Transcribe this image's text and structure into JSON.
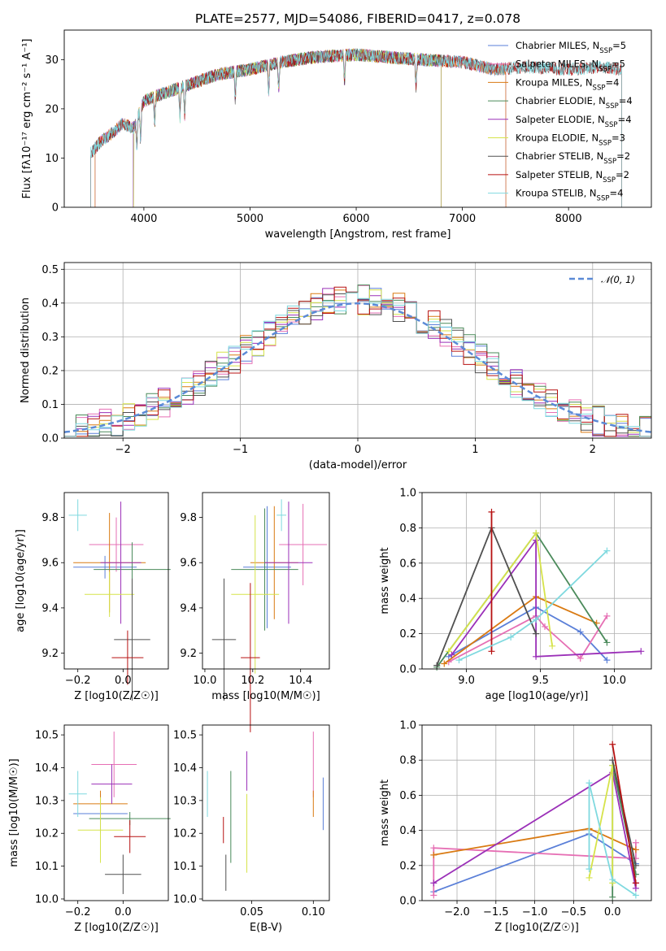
{
  "title": "PLATE=2577, MJD=54086, FIBERID=0417, z=0.078",
  "colors": {
    "chab_miles": "#5a7fd8",
    "salp_miles": "#e66fb4",
    "krou_miles": "#d97a12",
    "chab_elodie": "#4a8a5a",
    "salp_elodie": "#9b30b8",
    "krou_elodie": "#d6e34a",
    "chab_stelib": "#505050",
    "salp_stelib": "#b71212",
    "krou_stelib": "#7fd9df"
  },
  "chart_data": [
    {
      "type": "line",
      "panel": "spectrum",
      "xlabel": "wavelength [Angstrom, rest frame]",
      "ylabel": "Flux [fλ10⁻¹⁷ erg cm⁻² s⁻¹ A⁻¹]",
      "xlim": [
        3250,
        8780
      ],
      "ylim": [
        0,
        36
      ],
      "xticks": [
        4000,
        5000,
        6000,
        7000,
        8000
      ],
      "yticks": [
        0,
        10,
        20,
        30
      ],
      "grid": false,
      "legend_position": "top-right",
      "continuum": {
        "x": [
          3500,
          3600,
          3700,
          3800,
          3900,
          4000,
          4100,
          4300,
          4500,
          4700,
          5000,
          5300,
          5600,
          6000,
          6300,
          6600,
          7000,
          7300,
          7600,
          8000,
          8300,
          8500
        ],
        "y": [
          11,
          13.5,
          15,
          17,
          16,
          21.5,
          22.5,
          24,
          25.5,
          27,
          28,
          29.5,
          30.5,
          31,
          30.5,
          30,
          29.5,
          28,
          28.5,
          28,
          28.5,
          28
        ]
      },
      "series": [
        {
          "name": "Chabrier MILES, N_SSP=5",
          "color_key": "chab_miles",
          "x_range": [
            3540,
            7410
          ]
        },
        {
          "name": "Salpeter MILES, N_SSP=5",
          "color_key": "salp_miles",
          "x_range": [
            3540,
            7410
          ]
        },
        {
          "name": "Kroupa MILES, N_SSP=4",
          "color_key": "krou_miles",
          "x_range": [
            3540,
            7410
          ]
        },
        {
          "name": "Chabrier ELODIE, N_SSP=4",
          "color_key": "chab_elodie",
          "x_range": [
            3900,
            6800
          ]
        },
        {
          "name": "Salpeter ELODIE, N_SSP=4",
          "color_key": "salp_elodie",
          "x_range": [
            3900,
            6800
          ]
        },
        {
          "name": "Kroupa ELODIE, N_SSP=3",
          "color_key": "krou_elodie",
          "x_range": [
            3900,
            6800
          ]
        },
        {
          "name": "Chabrier STELIB, N_SSP=2",
          "color_key": "chab_stelib",
          "x_range": [
            3500,
            8500
          ]
        },
        {
          "name": "Salpeter STELIB, N_SSP=2",
          "color_key": "salp_stelib",
          "x_range": [
            3500,
            8500
          ]
        },
        {
          "name": "Kroupa STELIB, N_SSP=4",
          "color_key": "krou_stelib",
          "x_range": [
            3500,
            8500
          ]
        }
      ]
    },
    {
      "type": "line",
      "panel": "residuals",
      "xlabel": "(data-model)/error",
      "ylabel": "Normed distribution",
      "xlim": [
        -2.5,
        2.5
      ],
      "ylim": [
        0,
        0.52
      ],
      "xticks": [
        -2,
        -1,
        0,
        1,
        2
      ],
      "yticks": [
        0.0,
        0.1,
        0.2,
        0.3,
        0.4,
        0.5
      ],
      "grid": true,
      "legend": "𝒩(0, 1)",
      "legend_position": "top-right",
      "gaussian": {
        "mean": 0,
        "sigma": 1
      },
      "histogram_bin_width": 0.1
    },
    {
      "type": "scatter",
      "panel": "Z_vs_age",
      "xlabel": "Z [log10(Z/Z☉)]",
      "ylabel": "age  [log10(age/yr)]",
      "xlim": [
        -0.26,
        0.2
      ],
      "ylim": [
        9.13,
        9.91
      ],
      "xticks": [
        -0.2,
        0.0
      ],
      "yticks": [
        9.2,
        9.4,
        9.6,
        9.8
      ],
      "points": [
        {
          "color_key": "chab_miles",
          "x": -0.08,
          "xerr": 0.14,
          "y": 9.58,
          "yerr": 0.05
        },
        {
          "color_key": "salp_miles",
          "x": -0.03,
          "xerr": 0.12,
          "y": 9.68,
          "yerr": 0.12
        },
        {
          "color_key": "krou_miles",
          "x": -0.06,
          "xerr": 0.16,
          "y": 9.6,
          "yerr": 0.22
        },
        {
          "color_key": "chab_elodie",
          "x": 0.04,
          "xerr": 0.17,
          "y": 9.57,
          "yerr": 0.12
        },
        {
          "color_key": "salp_elodie",
          "x": -0.01,
          "xerr": 0.09,
          "y": 9.6,
          "yerr": 0.27
        },
        {
          "color_key": "krou_elodie",
          "x": -0.06,
          "xerr": 0.11,
          "y": 9.46,
          "yerr": 0.1
        },
        {
          "color_key": "chab_stelib",
          "x": 0.04,
          "xerr": 0.08,
          "y": 9.26,
          "yerr": 0.27
        },
        {
          "color_key": "salp_stelib",
          "x": 0.02,
          "xerr": 0.07,
          "y": 9.18,
          "yerr": 0.12
        },
        {
          "color_key": "krou_stelib",
          "x": -0.2,
          "xerr": 0.04,
          "y": 9.81,
          "yerr": 0.07
        }
      ]
    },
    {
      "type": "scatter",
      "panel": "mass_vs_age",
      "xlabel": "mass [log10(M/M☉)]",
      "ylabel": "",
      "xlim": [
        9.99,
        10.52
      ],
      "ylim": [
        9.13,
        9.91
      ],
      "xticks": [
        10.0,
        10.2,
        10.4
      ],
      "yticks": [
        9.2,
        9.4,
        9.6,
        9.8
      ],
      "points": [
        {
          "color_key": "chab_miles",
          "x": 10.26,
          "xerr": 0.1,
          "y": 9.58,
          "yerr": 0.27
        },
        {
          "color_key": "salp_miles",
          "x": 10.41,
          "xerr": 0.1,
          "y": 9.68,
          "yerr": 0.18
        },
        {
          "color_key": "krou_miles",
          "x": 10.29,
          "xerr": 0.1,
          "y": 9.6,
          "yerr": 0.25
        },
        {
          "color_key": "chab_elodie",
          "x": 10.25,
          "xerr": 0.14,
          "y": 9.57,
          "yerr": 0.27
        },
        {
          "color_key": "salp_elodie",
          "x": 10.35,
          "xerr": 0.1,
          "y": 9.6,
          "yerr": 0.27
        },
        {
          "color_key": "krou_elodie",
          "x": 10.21,
          "xerr": 0.1,
          "y": 9.46,
          "yerr": 0.35
        },
        {
          "color_key": "chab_stelib",
          "x": 10.08,
          "xerr": 0.05,
          "y": 9.26,
          "yerr": 0.27
        },
        {
          "color_key": "salp_stelib",
          "x": 10.19,
          "xerr": 0.04,
          "y": 9.18,
          "yerr": 0.33
        },
        {
          "color_key": "krou_stelib",
          "x": 10.32,
          "xerr": 0.02,
          "y": 9.81,
          "yerr": 0.07
        }
      ]
    },
    {
      "type": "line",
      "panel": "age_vs_mass_weight",
      "xlabel": "age  [log10(age/yr)]",
      "ylabel": "mass weight",
      "xlim": [
        8.7,
        10.25
      ],
      "ylim": [
        0,
        1
      ],
      "xticks": [
        9.0,
        9.5,
        10.0
      ],
      "yticks": [
        0.0,
        0.2,
        0.4,
        0.6,
        0.8,
        1.0
      ],
      "grid": true,
      "series": [
        {
          "color_key": "chab_miles",
          "x": [
            8.88,
            9.47,
            9.77,
            9.95
          ],
          "y": [
            0.07,
            0.35,
            0.21,
            0.05
          ]
        },
        {
          "color_key": "salp_miles",
          "x": [
            8.88,
            9.47,
            9.53,
            9.77,
            9.95
          ],
          "y": [
            0.04,
            0.3,
            0.24,
            0.06,
            0.3
          ]
        },
        {
          "color_key": "krou_miles",
          "x": [
            8.85,
            9.47,
            9.88
          ],
          "y": [
            0.03,
            0.41,
            0.26
          ]
        },
        {
          "color_key": "chab_elodie",
          "x": [
            8.8,
            9.47,
            9.95
          ],
          "y": [
            0.01,
            0.77,
            0.15
          ]
        },
        {
          "color_key": "salp_elodie",
          "x": [
            8.9,
            9.47,
            9.47,
            10.18
          ],
          "y": [
            0.08,
            0.73,
            0.07,
            0.1
          ]
        },
        {
          "color_key": "krou_elodie",
          "x": [
            8.88,
            9.47,
            9.58
          ],
          "y": [
            0.1,
            0.77,
            0.13
          ]
        },
        {
          "color_key": "chab_stelib",
          "x": [
            8.8,
            9.17,
            9.47
          ],
          "y": [
            0.02,
            0.8,
            0.2
          ]
        },
        {
          "color_key": "salp_stelib",
          "x": [
            9.17,
            9.17
          ],
          "y": [
            0.1,
            0.89
          ]
        },
        {
          "color_key": "krou_stelib",
          "x": [
            8.95,
            9.3,
            9.47,
            9.95
          ],
          "y": [
            0.05,
            0.18,
            0.28,
            0.67
          ]
        }
      ]
    },
    {
      "type": "scatter",
      "panel": "Z_vs_mass",
      "xlabel": "Z [log10(Z/Z☉)]",
      "ylabel": "mass [log10(M/M☉)]",
      "xlim": [
        -0.26,
        0.2
      ],
      "ylim": [
        9.995,
        10.53
      ],
      "xticks": [
        -0.2,
        0.0
      ],
      "yticks": [
        10.0,
        10.1,
        10.2,
        10.3,
        10.4,
        10.5
      ],
      "points": [
        {
          "color_key": "chab_miles",
          "x": -0.1,
          "xerr": 0.12,
          "y": 10.26,
          "yerr": 0.06
        },
        {
          "color_key": "salp_miles",
          "x": -0.04,
          "xerr": 0.1,
          "y": 10.41,
          "yerr": 0.1
        },
        {
          "color_key": "krou_miles",
          "x": -0.1,
          "xerr": 0.12,
          "y": 10.29,
          "yerr": 0.04
        },
        {
          "color_key": "chab_elodie",
          "x": 0.03,
          "xerr": 0.18,
          "y": 10.245,
          "yerr": 0.02
        },
        {
          "color_key": "salp_elodie",
          "x": -0.05,
          "xerr": 0.09,
          "y": 10.35,
          "yerr": 0.06
        },
        {
          "color_key": "krou_elodie",
          "x": -0.1,
          "xerr": 0.1,
          "y": 10.21,
          "yerr": 0.1
        },
        {
          "color_key": "chab_stelib",
          "x": 0.0,
          "xerr": 0.08,
          "y": 10.075,
          "yerr": 0.06
        },
        {
          "color_key": "salp_stelib",
          "x": 0.03,
          "xerr": 0.07,
          "y": 10.19,
          "yerr": 0.05
        },
        {
          "color_key": "krou_stelib",
          "x": -0.2,
          "xerr": 0.04,
          "y": 10.32,
          "yerr": 0.07
        }
      ]
    },
    {
      "type": "scatter",
      "panel": "EBV_vs_mass",
      "xlabel": "E(B-V)",
      "ylabel": "",
      "xlim": [
        0.01,
        0.113
      ],
      "ylim": [
        9.995,
        10.53
      ],
      "xticks": [
        0.05,
        0.1
      ],
      "yticks": [
        10.0,
        10.1,
        10.2,
        10.3,
        10.4,
        10.5
      ],
      "points": [
        {
          "color_key": "chab_miles",
          "x": 0.108,
          "y": 10.29,
          "yerr": 0.08
        },
        {
          "color_key": "salp_miles",
          "x": 0.1,
          "y": 10.41,
          "yerr": 0.1
        },
        {
          "color_key": "krou_miles",
          "x": 0.1,
          "y": 10.29,
          "yerr": 0.04
        },
        {
          "color_key": "chab_elodie",
          "x": 0.033,
          "y": 10.25,
          "yerr": 0.14
        },
        {
          "color_key": "salp_elodie",
          "x": 0.046,
          "y": 10.39,
          "yerr": 0.06
        },
        {
          "color_key": "krou_elodie",
          "x": 0.046,
          "y": 10.2,
          "yerr": 0.12
        },
        {
          "color_key": "chab_stelib",
          "x": 0.029,
          "y": 10.08,
          "yerr": 0.055
        },
        {
          "color_key": "salp_stelib",
          "x": 0.027,
          "y": 10.21,
          "yerr": 0.04
        },
        {
          "color_key": "krou_stelib",
          "x": 0.014,
          "y": 10.32,
          "yerr": 0.07
        }
      ]
    },
    {
      "type": "line",
      "panel": "Z_vs_mass_weight",
      "xlabel": "Z [log10(Z/Z☉)]",
      "ylabel": "mass weight",
      "xlim": [
        -2.45,
        0.5
      ],
      "ylim": [
        0,
        1
      ],
      "xticks": [
        -2.0,
        -1.5,
        -1.0,
        -0.5,
        0.0
      ],
      "yticks": [
        0.0,
        0.2,
        0.4,
        0.6,
        0.8,
        1.0
      ],
      "grid": true,
      "series": [
        {
          "color_key": "chab_miles",
          "x": [
            -2.3,
            -0.3,
            0.3
          ],
          "y": [
            0.05,
            0.38,
            0.21
          ]
        },
        {
          "color_key": "salp_miles",
          "x": [
            -2.3,
            -2.3,
            0.3,
            0.3
          ],
          "y": [
            0.03,
            0.3,
            0.24,
            0.33
          ]
        },
        {
          "color_key": "krou_miles",
          "x": [
            -2.3,
            -0.3,
            0.3
          ],
          "y": [
            0.26,
            0.41,
            0.29
          ]
        },
        {
          "color_key": "chab_elodie",
          "x": [
            0.0,
            0.0,
            0.3
          ],
          "y": [
            0.02,
            0.77,
            0.15
          ]
        },
        {
          "color_key": "salp_elodie",
          "x": [
            -2.3,
            0.0,
            0.3,
            0.3
          ],
          "y": [
            0.1,
            0.73,
            0.07,
            0.1
          ]
        },
        {
          "color_key": "krou_elodie",
          "x": [
            -0.3,
            0.0,
            0.0
          ],
          "y": [
            0.13,
            0.77,
            0.1
          ]
        },
        {
          "color_key": "chab_stelib",
          "x": [
            0.0,
            0.3
          ],
          "y": [
            0.8,
            0.2
          ]
        },
        {
          "color_key": "salp_stelib",
          "x": [
            0.0,
            0.3
          ],
          "y": [
            0.89,
            0.1
          ]
        },
        {
          "color_key": "krou_stelib",
          "x": [
            -0.3,
            -0.3,
            0.0,
            0.3
          ],
          "y": [
            0.18,
            0.67,
            0.12,
            0.03
          ]
        }
      ]
    }
  ]
}
